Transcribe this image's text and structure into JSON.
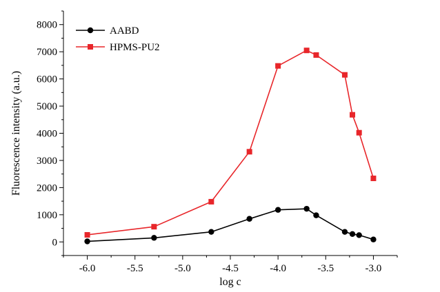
{
  "chart_data": {
    "type": "line",
    "title": "",
    "xlabel": "log c",
    "ylabel": "Fluorescence intensity (a.u.)",
    "xlim": [
      -6.25,
      -2.75
    ],
    "ylim": [
      -500,
      8500
    ],
    "xticks": [
      -6.0,
      -5.5,
      -5.0,
      -4.5,
      -4.0,
      -3.5,
      -3.0
    ],
    "xtick_labels": [
      "-6.0",
      "-5.5",
      "-5.0",
      "-4.5",
      "-4.0",
      "-3.5",
      "-3.0"
    ],
    "yticks": [
      0,
      1000,
      2000,
      3000,
      4000,
      5000,
      6000,
      7000,
      8000
    ],
    "ytick_labels": [
      "0",
      "1000",
      "2000",
      "3000",
      "4000",
      "5000",
      "6000",
      "7000",
      "8000"
    ],
    "legend_position": "top-left",
    "series": [
      {
        "name": "AABD",
        "color": "#000000",
        "marker": "circle",
        "x": [
          -6.0,
          -5.3,
          -4.7,
          -4.3,
          -4.0,
          -3.7,
          -3.6,
          -3.3,
          -3.22,
          -3.15,
          -3.0
        ],
        "values": [
          20,
          150,
          370,
          850,
          1180,
          1220,
          980,
          370,
          290,
          250,
          90
        ]
      },
      {
        "name": "HPMS-PU2",
        "color": "#e8262a",
        "marker": "square",
        "x": [
          -6.0,
          -5.3,
          -4.7,
          -4.3,
          -4.0,
          -3.7,
          -3.6,
          -3.3,
          -3.22,
          -3.15,
          -3.0
        ],
        "values": [
          260,
          560,
          1480,
          3320,
          6480,
          7050,
          6880,
          6150,
          4680,
          4020,
          2340
        ]
      }
    ]
  }
}
